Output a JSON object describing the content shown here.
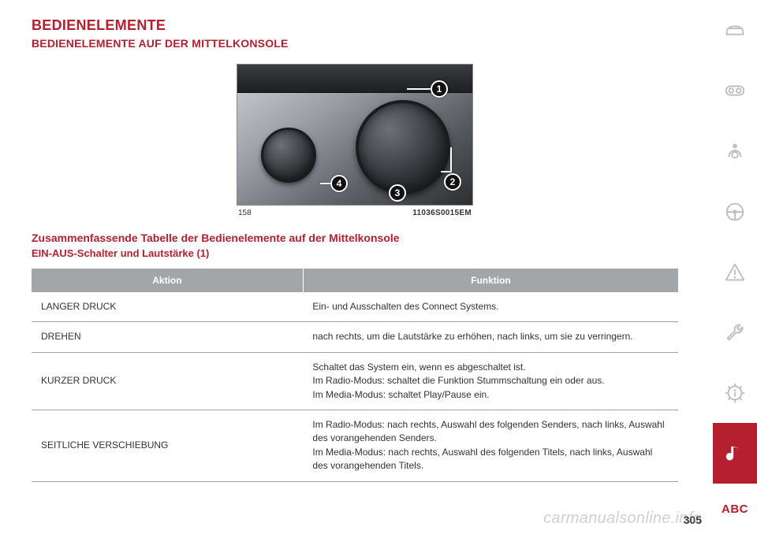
{
  "title": "BEDIENELEMENTE",
  "subtitle": "BEDIENELEMENTE AUF DER MITTELKONSOLE",
  "figure": {
    "captionLeft": "158",
    "captionRight": "11036S0015EM",
    "callouts": [
      "1",
      "2",
      "3",
      "4"
    ]
  },
  "section": "Zusammenfassende Tabelle der Bedienelemente auf der Mittelkonsole",
  "subsection": "EIN-AUS-Schalter und Lautstärke (1)",
  "table": {
    "headers": [
      "Aktion",
      "Funktion"
    ],
    "rows": [
      {
        "action": "LANGER DRUCK",
        "function": "Ein- und Ausschalten des Connect Systems."
      },
      {
        "action": "DREHEN",
        "function": "nach rechts, um die Lautstärke zu erhöhen, nach links, um sie zu verringern."
      },
      {
        "action": "KURZER DRUCK",
        "function": "Schaltet das System ein, wenn es abgeschaltet ist.\nIm Radio-Modus: schaltet die Funktion Stummschaltung ein oder aus.\nIm Media-Modus: schaltet Play/Pause ein."
      },
      {
        "action": "SEITLICHE VERSCHIEBUNG",
        "function": "Im Radio-Modus: nach rechts, Auswahl des folgenden Senders, nach links, Auswahl des vorangehenden Senders.\nIm Media-Modus: nach rechts, Auswahl des folgenden Titels, nach links, Auswahl des vorangehenden Titels."
      }
    ]
  },
  "sidebar": {
    "abc": "ABC"
  },
  "watermark": "carmanualsonline.info",
  "pageNumber": "305",
  "colors": {
    "accent": "#b51f2e",
    "iconGrey": "#bcbec0",
    "headerGrey": "#a2a6a9"
  }
}
